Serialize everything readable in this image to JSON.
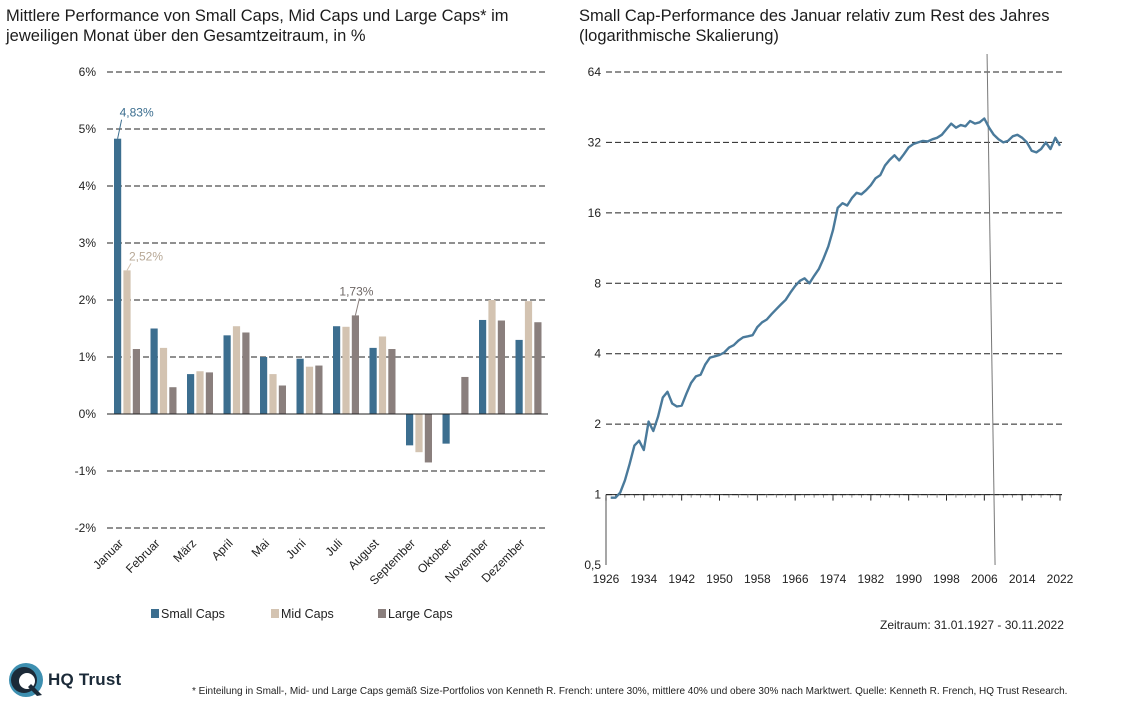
{
  "titles": {
    "left": "Mittlere Performance von Small Caps, Mid Caps und Large Caps* im jeweiligen Monat über den Gesamtzeitraum, in %",
    "right": "Small Cap-Performance des Januar relativ zum Rest des Jahres (logarithmische Skalierung)"
  },
  "period": "Zeitraum: 31.01.1927 - 30.11.2022",
  "footnote": "* Einteilung in Small-, Mid- und Large Caps gemäß Size-Portfolios von Kenneth R. French: untere 30%, mittlere 40% und obere 30% nach Marktwert. Quelle: Kenneth R. French, HQ Trust Research.",
  "brand": {
    "name": "HQ Trust",
    "icon": "hq-trust-logo-icon",
    "color": "#1b2a38",
    "accent": "#3d8fb0"
  },
  "colors": {
    "small": "#3c6e8f",
    "mid": "#d3c3b1",
    "large": "#8a7f7d",
    "line": "#4a7a9b"
  },
  "chart_data": [
    {
      "type": "bar",
      "categories": [
        "Januar",
        "Februar",
        "März",
        "April",
        "Mai",
        "Juni",
        "Juli",
        "August",
        "September",
        "Oktober",
        "November",
        "Dezember"
      ],
      "series": [
        {
          "name": "Small Caps",
          "values": [
            4.83,
            1.5,
            0.7,
            1.38,
            1.0,
            0.97,
            1.54,
            1.16,
            -0.55,
            -0.52,
            1.65,
            1.3
          ]
        },
        {
          "name": "Mid Caps",
          "values": [
            2.52,
            1.16,
            0.75,
            1.54,
            0.7,
            0.83,
            1.53,
            1.36,
            -0.67,
            0.0,
            2.0,
            1.98
          ]
        },
        {
          "name": "Large Caps",
          "values": [
            1.14,
            0.47,
            0.73,
            1.43,
            0.5,
            0.85,
            1.73,
            1.14,
            -0.85,
            0.65,
            1.64,
            1.61
          ]
        }
      ],
      "ylim": [
        -2,
        6
      ],
      "yticks": [
        "-2%",
        "-1%",
        "0%",
        "1%",
        "2%",
        "3%",
        "4%",
        "5%",
        "6%"
      ],
      "ytick_values": [
        -2,
        -1,
        0,
        1,
        2,
        3,
        4,
        5,
        6
      ],
      "annotations": [
        {
          "series": 0,
          "category": 0,
          "text": "4,83%"
        },
        {
          "series": 1,
          "category": 0,
          "text": "2,52%"
        },
        {
          "series": 2,
          "category": 6,
          "text": "1,73%"
        }
      ],
      "grid": true,
      "legend": "bottom"
    },
    {
      "type": "line",
      "yscale": "log2",
      "ylim": [
        0.5,
        64
      ],
      "yticks": [
        "0,5",
        "1",
        "2",
        "4",
        "8",
        "16",
        "32",
        "64"
      ],
      "ytick_values": [
        0.5,
        1,
        2,
        4,
        8,
        16,
        32,
        64
      ],
      "xlim": [
        1926,
        2022
      ],
      "xticks": [
        1926,
        1934,
        1942,
        1950,
        1958,
        1966,
        1974,
        1982,
        1990,
        1998,
        2006,
        2014,
        2022
      ],
      "marker_line_x": 2007,
      "grid": true,
      "x": [
        1927,
        1928,
        1929,
        1930,
        1931,
        1932,
        1933,
        1934,
        1935,
        1936,
        1937,
        1938,
        1939,
        1940,
        1941,
        1942,
        1943,
        1944,
        1945,
        1946,
        1947,
        1948,
        1949,
        1950,
        1951,
        1952,
        1953,
        1954,
        1955,
        1956,
        1957,
        1958,
        1959,
        1960,
        1961,
        1962,
        1963,
        1964,
        1965,
        1966,
        1967,
        1968,
        1969,
        1970,
        1971,
        1972,
        1973,
        1974,
        1975,
        1976,
        1977,
        1978,
        1979,
        1980,
        1981,
        1982,
        1983,
        1984,
        1985,
        1986,
        1987,
        1988,
        1989,
        1990,
        1991,
        1992,
        1993,
        1994,
        1995,
        1996,
        1997,
        1998,
        1999,
        2000,
        2001,
        2002,
        2003,
        2004,
        2005,
        2006,
        2007,
        2008,
        2009,
        2010,
        2011,
        2012,
        2013,
        2014,
        2015,
        2016,
        2017,
        2018,
        2019,
        2020,
        2021,
        2022
      ],
      "y": [
        0.97,
        0.97,
        1.02,
        1.15,
        1.35,
        1.62,
        1.7,
        1.55,
        2.05,
        1.87,
        2.15,
        2.6,
        2.75,
        2.45,
        2.38,
        2.4,
        2.7,
        3.0,
        3.2,
        3.25,
        3.6,
        3.85,
        3.9,
        3.95,
        4.05,
        4.25,
        4.35,
        4.55,
        4.7,
        4.75,
        4.8,
        5.2,
        5.45,
        5.6,
        5.9,
        6.2,
        6.5,
        6.8,
        7.3,
        7.8,
        8.2,
        8.4,
        8.0,
        8.6,
        9.2,
        10.2,
        11.5,
        13.5,
        16.8,
        17.6,
        17.2,
        18.5,
        19.5,
        19.2,
        20.0,
        21.0,
        22.5,
        23.2,
        25.5,
        27.0,
        28.2,
        26.8,
        28.5,
        30.5,
        31.5,
        32.0,
        32.5,
        32.3,
        33.0,
        33.5,
        34.5,
        36.5,
        38.5,
        37.0,
        38.0,
        37.5,
        39.5,
        38.5,
        39.0,
        40.5,
        37.0,
        34.5,
        33.0,
        32.0,
        32.5,
        34.0,
        34.5,
        33.5,
        32.0,
        29.5,
        29.0,
        30.0,
        32.0,
        30.0,
        33.5,
        31.0
      ]
    }
  ]
}
